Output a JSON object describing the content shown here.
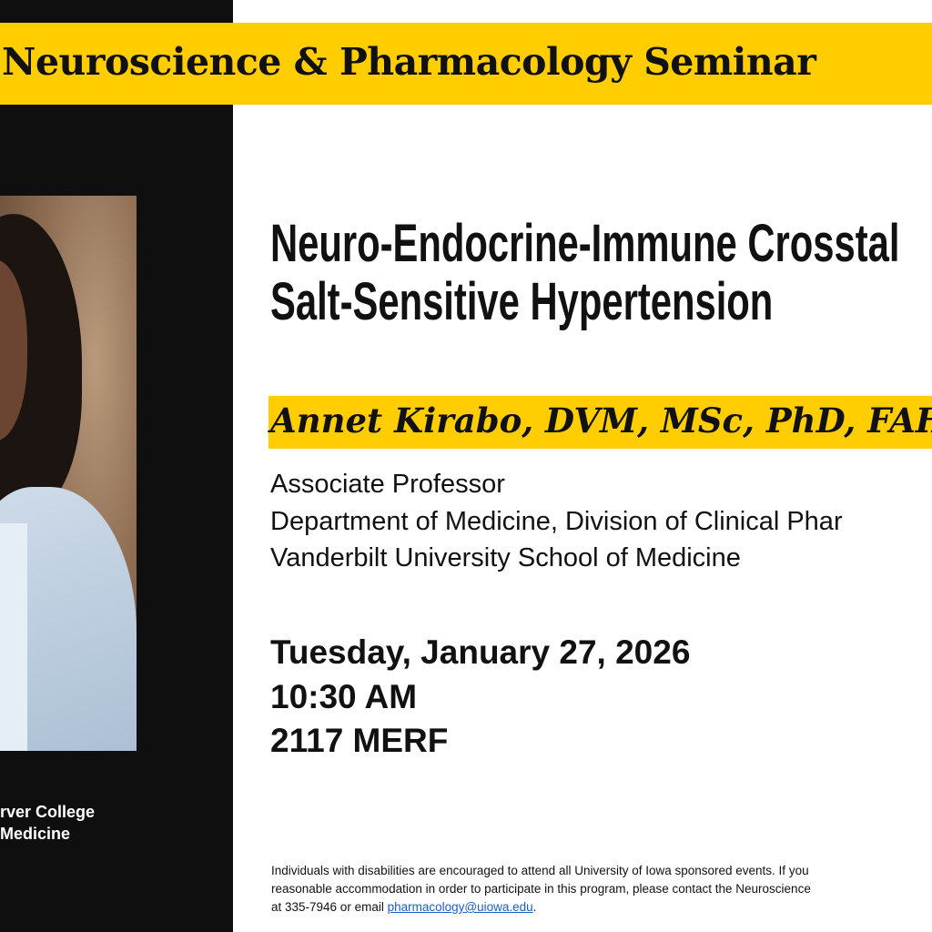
{
  "banner": {
    "title": "Neuroscience & Pharmacology Seminar"
  },
  "sidebar": {
    "school_line1": "rver College",
    "school_line2": "Medicine"
  },
  "talk": {
    "title_line1": "Neuro-Endocrine-Immune Crosstal",
    "title_line2": "Salt-Sensitive Hypertension"
  },
  "speaker": {
    "name": "Annet Kirabo, DVM, MSc, PhD, FAH",
    "position": "Associate Professor",
    "department": "Department of Medicine, Division of Clinical Phar",
    "institution": "Vanderbilt University School of Medicine"
  },
  "event": {
    "date": "Tuesday, January 27, 2026",
    "time": "10:30 AM",
    "location": "2117 MERF"
  },
  "footer": {
    "line1": "Individuals with disabilities are encouraged to attend all University of Iowa sponsored events.  If you",
    "line2": "reasonable accommodation in order to participate in this program, please contact the Neuroscience",
    "line3_prefix": "at 335-7946 or email ",
    "email": "pharmacology@uiowa.edu",
    "line3_suffix": "."
  },
  "colors": {
    "accent": "#ffcd00",
    "panel": "#0f0f0f",
    "link": "#1a5fc8"
  }
}
